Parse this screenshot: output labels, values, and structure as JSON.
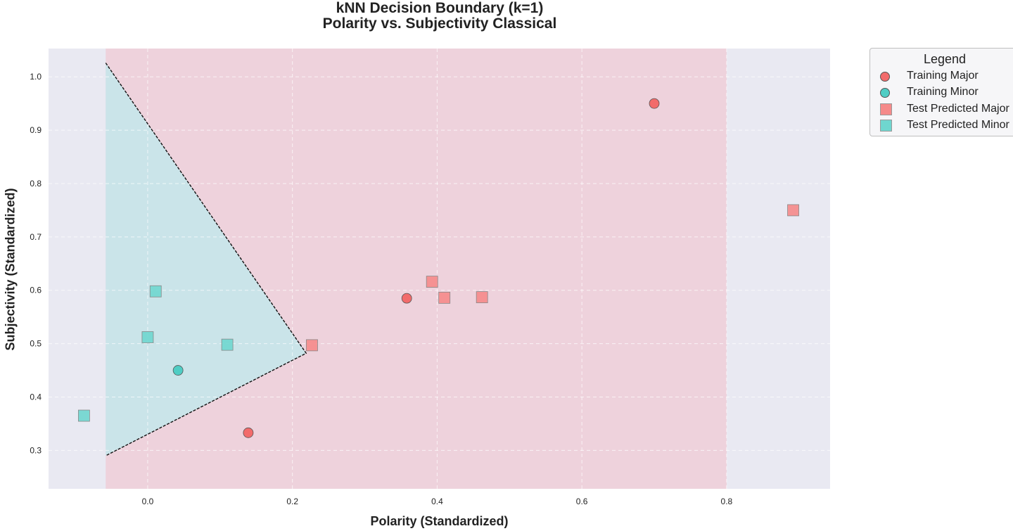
{
  "chart_data": {
    "type": "scatter",
    "title": "kNN Decision Boundary (k=1)",
    "subtitle": "Polarity vs. Subjectivity Classical",
    "xlabel": "Polarity (Standardized)",
    "ylabel": "Subjectivity (Standardized)",
    "xlim": [
      -0.137,
      0.943
    ],
    "ylim": [
      0.228,
      1.053
    ],
    "xticks": [
      0.0,
      0.2,
      0.4,
      0.6,
      0.8
    ],
    "xtick_labels": [
      "0.0",
      "0.2",
      "0.4",
      "0.6",
      "0.8"
    ],
    "yticks": [
      0.3,
      0.4,
      0.5,
      0.6,
      0.7,
      0.8,
      0.9,
      1.0
    ],
    "ytick_labels": [
      "0.3",
      "0.4",
      "0.5",
      "0.6",
      "0.7",
      "0.8",
      "0.9",
      "1.0"
    ],
    "grid": true,
    "legend_title": "Legend",
    "legend_position": "outside-right-top",
    "regions": [
      {
        "class": "Major",
        "color": "#f4b6c2",
        "x_range": [
          -0.058,
          0.8
        ],
        "y_range": [
          0.228,
          1.053
        ]
      },
      {
        "class": "Minor",
        "color": "#bde9ee",
        "polygon": [
          [
            -0.058,
            1.026
          ],
          [
            0.219,
            0.482
          ],
          [
            -0.058,
            0.29
          ]
        ]
      }
    ],
    "boundary": {
      "style": "dashed",
      "color": "#111111",
      "points": [
        [
          -0.058,
          1.026
        ],
        [
          0.219,
          0.482
        ],
        [
          -0.058,
          0.29
        ]
      ]
    },
    "series": [
      {
        "name": "Training Major",
        "marker": "circle",
        "color": "#f26b6b",
        "x": [
          0.7,
          0.358,
          0.139
        ],
        "y": [
          0.95,
          0.585,
          0.333
        ]
      },
      {
        "name": "Training Minor",
        "marker": "circle",
        "color": "#4fcdc4",
        "x": [
          0.042
        ],
        "y": [
          0.45
        ]
      },
      {
        "name": "Test Predicted Major",
        "marker": "square",
        "color": "#f58a8a",
        "x": [
          0.892,
          0.393,
          0.41,
          0.462,
          0.227
        ],
        "y": [
          0.75,
          0.616,
          0.586,
          0.587,
          0.497
        ]
      },
      {
        "name": "Test Predicted Minor",
        "marker": "square",
        "color": "#6fd6cf",
        "x": [
          0.011,
          0.0,
          0.11,
          -0.088
        ],
        "y": [
          0.598,
          0.512,
          0.498,
          0.365
        ]
      }
    ],
    "colors": {
      "plot_background": "#e9e9f2",
      "grid": "#ffffff",
      "text": "#222222"
    }
  }
}
